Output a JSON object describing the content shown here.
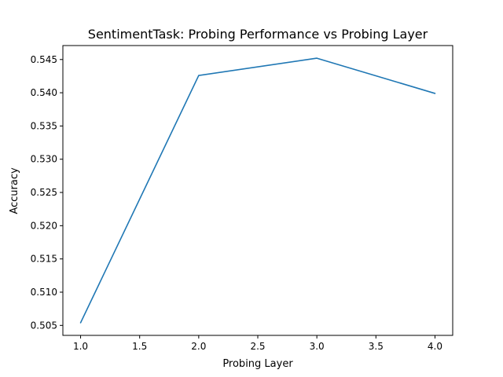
{
  "chart_data": {
    "type": "line",
    "title": "SentimentTask: Probing Performance vs Probing Layer",
    "xlabel": "Probing Layer",
    "ylabel": "Accuracy",
    "xlim": [
      0.85,
      4.15
    ],
    "ylim": [
      0.5035,
      0.5471
    ],
    "grid": false,
    "xticks": [
      1.0,
      1.5,
      2.0,
      2.5,
      3.0,
      3.5,
      4.0
    ],
    "xtick_labels": [
      "1.0",
      "1.5",
      "2.0",
      "2.5",
      "3.0",
      "3.5",
      "4.0"
    ],
    "yticks": [
      0.505,
      0.51,
      0.515,
      0.52,
      0.525,
      0.53,
      0.535,
      0.54,
      0.545
    ],
    "ytick_labels": [
      "0.505",
      "0.510",
      "0.515",
      "0.520",
      "0.525",
      "0.530",
      "0.535",
      "0.540",
      "0.545"
    ],
    "series": [
      {
        "color": "#1f77b4",
        "x": [
          1.0,
          2.0,
          3.0,
          4.0
        ],
        "y": [
          0.5054,
          0.5426,
          0.5452,
          0.5399
        ]
      }
    ]
  }
}
